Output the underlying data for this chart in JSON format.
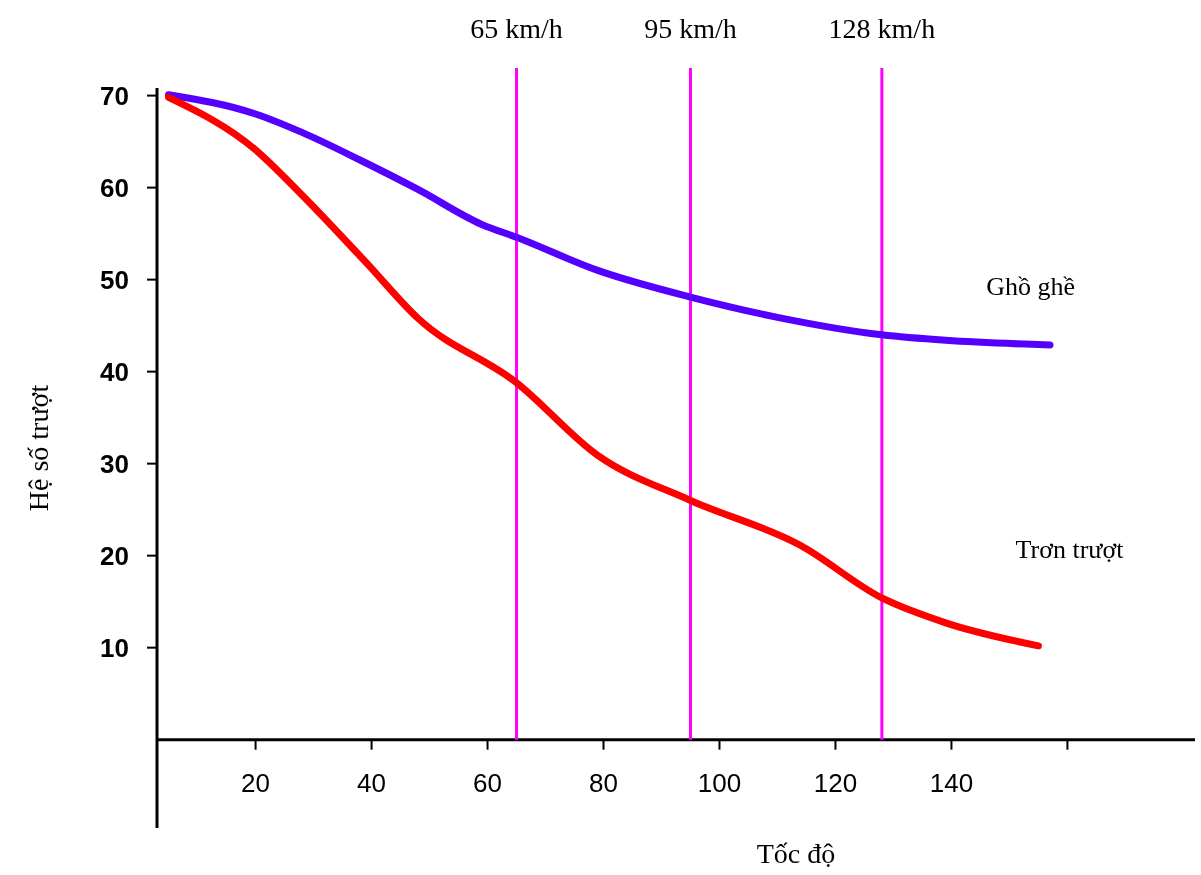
{
  "chart_data": {
    "type": "line",
    "xlabel": "Tốc độ",
    "ylabel": "Hệ số trượt",
    "xlim": [
      3,
      182
    ],
    "xticks": [
      20,
      40,
      60,
      80,
      100,
      120,
      140,
      {
        "value": 160,
        "label": null
      }
    ],
    "ylim": [
      -9.6,
      73
    ],
    "yticks": [
      10,
      20,
      30,
      40,
      50,
      60,
      70
    ],
    "grid": false,
    "marker": "none",
    "line_style": "solid",
    "series": [
      {
        "name": "Ghồ ghề",
        "color": "#5500ff",
        "x": [
          5,
          20,
          28,
          38,
          48,
          59,
          65,
          79,
          95,
          110,
          128,
          139,
          157
        ],
        "values": [
          70.1,
          68,
          66,
          63,
          59.8,
          56,
          54.6,
          51,
          48.1,
          45.9,
          44,
          43.4,
          42.9
        ]
      },
      {
        "name": "Trơn trượt",
        "color": "#ff0000",
        "x": [
          5,
          20,
          28,
          39,
          48,
          65,
          79,
          95,
          114,
          128,
          139,
          155
        ],
        "values": [
          69.8,
          64.1,
          59.2,
          51.9,
          45.8,
          38.8,
          30.9,
          26,
          21.1,
          15.4,
          12.7,
          10.2
        ]
      }
    ],
    "ref_lines": [
      {
        "axis": "x",
        "value": 65,
        "label": "65 km/h",
        "color": "#ff00ff"
      },
      {
        "axis": "x",
        "value": 95,
        "label": "95 km/h",
        "color": "#ff00ff"
      },
      {
        "axis": "x",
        "value": 128,
        "label": "128 km/h",
        "color": "#ff00ff"
      }
    ]
  }
}
